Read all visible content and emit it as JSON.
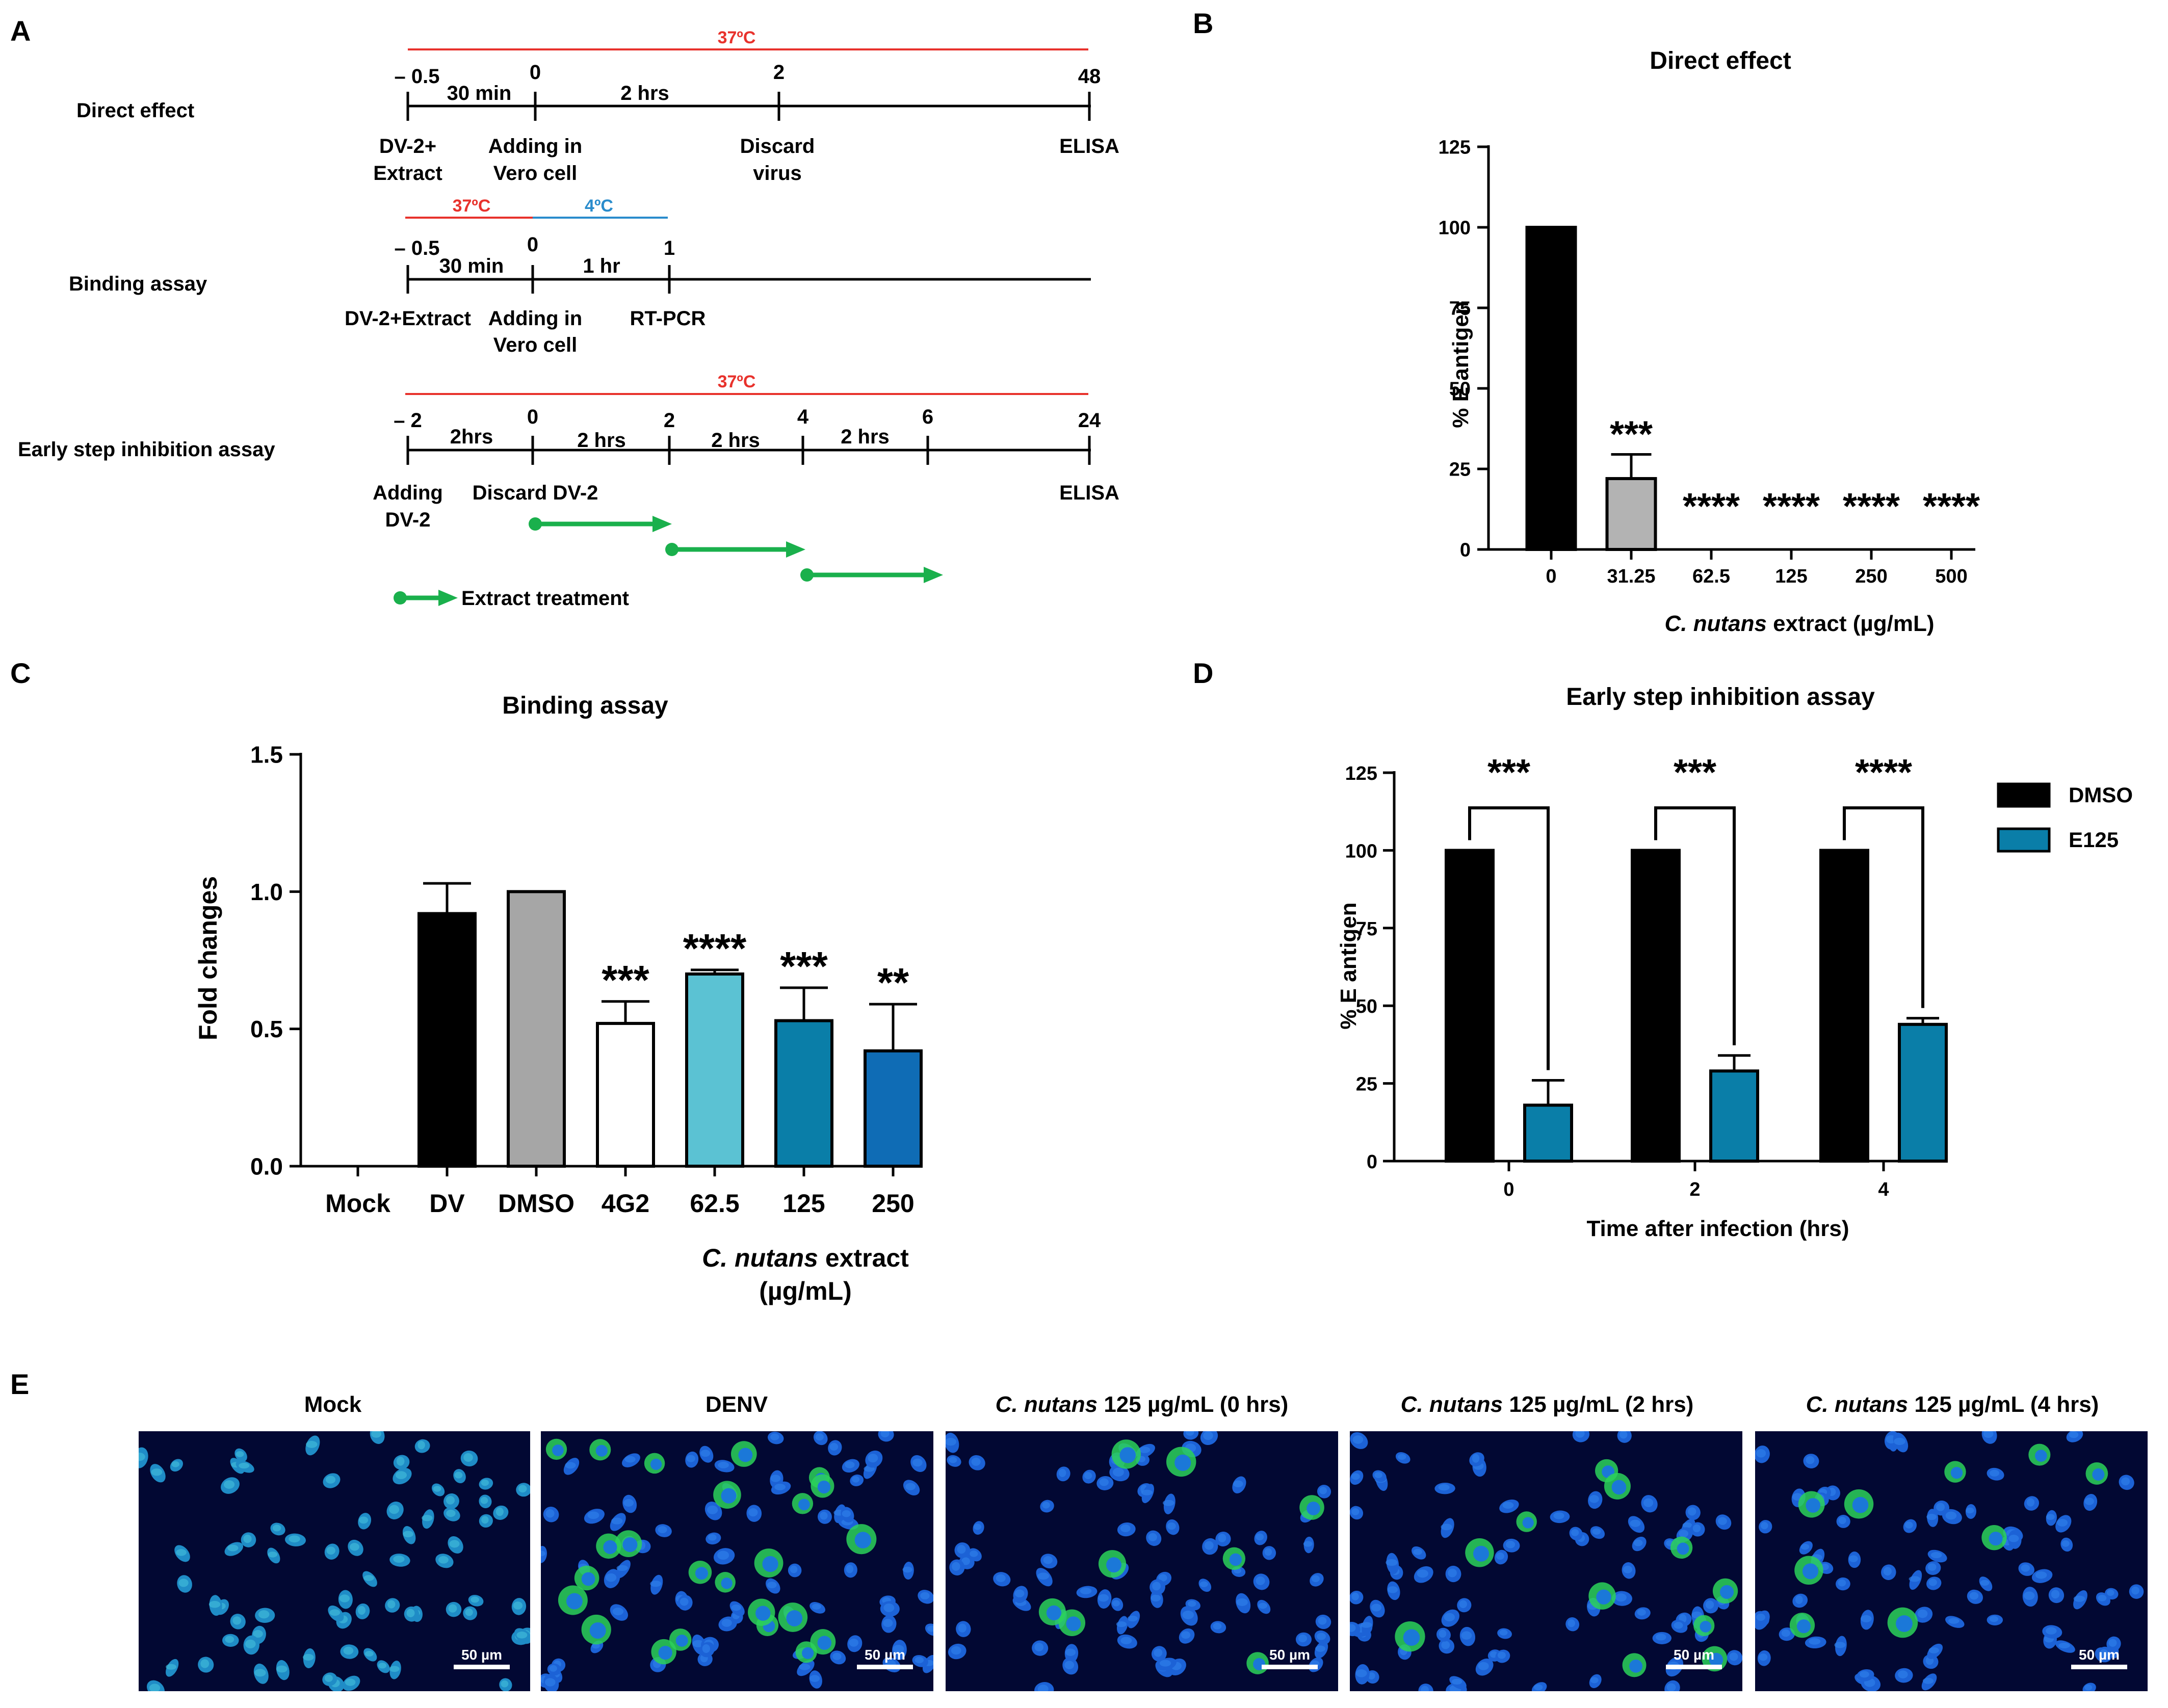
{
  "panel_labels": {
    "a": "A",
    "b": "B",
    "c": "C",
    "d": "D",
    "e": "E"
  },
  "panel_a": {
    "direct_effect": {
      "row_label": "Direct effect",
      "temp": "37ºC",
      "ticks": [
        "– 0.5",
        "0",
        "2",
        "48"
      ],
      "durations": [
        "30 min",
        "2 hrs"
      ],
      "steps": [
        "DV-2+",
        "Extract",
        "Adding in",
        "Vero cell",
        "Discard",
        "virus",
        "ELISA"
      ]
    },
    "binding_assay": {
      "row_label": "Binding assay",
      "temps": [
        "37ºC",
        "4ºC"
      ],
      "ticks": [
        "– 0.5",
        "0",
        "1"
      ],
      "durations": [
        "30 min",
        "1 hr"
      ],
      "steps": [
        "DV-2+Extract",
        "Adding in",
        "Vero cell",
        "RT-PCR"
      ]
    },
    "early_step": {
      "row_label": "Early step inhibition assay",
      "temp": "37ºC",
      "ticks": [
        "– 2",
        "0",
        "2",
        "4",
        "6",
        "24"
      ],
      "durations": [
        "2hrs",
        "2 hrs",
        "2 hrs",
        "2 hrs"
      ],
      "steps": [
        "Adding",
        "DV-2",
        "Discard DV-2",
        "ELISA"
      ],
      "legend": "Extract treatment"
    },
    "colors": {
      "red": "#e8322c",
      "blue": "#2a8ccc",
      "green": "#1ab04c"
    }
  },
  "chart_data": [
    {
      "panel": "B",
      "type": "bar",
      "title": "Direct effect",
      "xlabel_italic": "C. nutans",
      "xlabel_rest": " extract (µg/mL)",
      "ylabel": "% E antigen",
      "ylim": [
        0,
        125
      ],
      "yticks": [
        "0",
        "25",
        "50",
        "75",
        "100",
        "125"
      ],
      "categories": [
        "0",
        "31.25",
        "62.5",
        "125",
        "250",
        "500"
      ],
      "values": [
        100,
        22,
        0,
        0,
        0,
        0
      ],
      "errors": [
        0,
        7.5,
        0,
        0,
        0,
        0
      ],
      "colors": [
        "#000000",
        "#b3b3b3",
        "#ffffff",
        "#ffffff",
        "#ffffff",
        "#ffffff"
      ],
      "significance": [
        "",
        "***",
        "****",
        "****",
        "****",
        "****"
      ]
    },
    {
      "panel": "C",
      "type": "bar",
      "title": "Binding assay",
      "xlabel_italic": "C. nutans",
      "xlabel_rest": " extract",
      "xlabel_line2": "(µg/mL)",
      "ylabel": "Fold changes",
      "ylim": [
        0,
        1.5
      ],
      "yticks": [
        "0.0",
        "0.5",
        "1.0",
        "1.5"
      ],
      "categories": [
        "Mock",
        "DV",
        "DMSO",
        "4G2",
        "62.5",
        "125",
        "250"
      ],
      "values": [
        0,
        0.92,
        1.0,
        0.52,
        0.7,
        0.53,
        0.42
      ],
      "errors": [
        0,
        0.11,
        0,
        0.08,
        0.015,
        0.12,
        0.17
      ],
      "colors": [
        "#ffffff",
        "#000000",
        "#a6a6a6",
        "#ffffff",
        "#5bc2d3",
        "#0a7ea8",
        "#0f6cb5"
      ],
      "significance": [
        "",
        "",
        "",
        "***",
        "****",
        "***",
        "**"
      ]
    },
    {
      "panel": "D",
      "type": "bar",
      "title": "Early step inhibition assay",
      "xlabel": "Time after infection (hrs)",
      "ylabel": "% E antigen",
      "ylim": [
        0,
        125
      ],
      "yticks": [
        "0",
        "25",
        "50",
        "75",
        "100",
        "125"
      ],
      "categories": [
        "0",
        "2",
        "4"
      ],
      "series": [
        {
          "name": "DMSO",
          "color": "#000000",
          "values": [
            100,
            100,
            100
          ],
          "errors": [
            0,
            0,
            0
          ]
        },
        {
          "name": "E125",
          "color": "#0a7ea8",
          "values": [
            18,
            29,
            44
          ],
          "errors": [
            8,
            5,
            2
          ]
        }
      ],
      "significance": [
        "***",
        "***",
        "****"
      ]
    }
  ],
  "panel_e": {
    "images": [
      {
        "title_italic": "",
        "title": "Mock",
        "scale": "50 µm"
      },
      {
        "title_italic": "",
        "title": "DENV",
        "scale": "50 µm"
      },
      {
        "title_italic": "C. nutans",
        "title": " 125 µg/mL (0 hrs)",
        "scale": "50 µm"
      },
      {
        "title_italic": "C. nutans",
        "title": " 125 µg/mL (2 hrs)",
        "scale": "50 µm"
      },
      {
        "title_italic": "C. nutans",
        "title": " 125 µg/mL (4 hrs)",
        "scale": "50 µm"
      }
    ]
  }
}
